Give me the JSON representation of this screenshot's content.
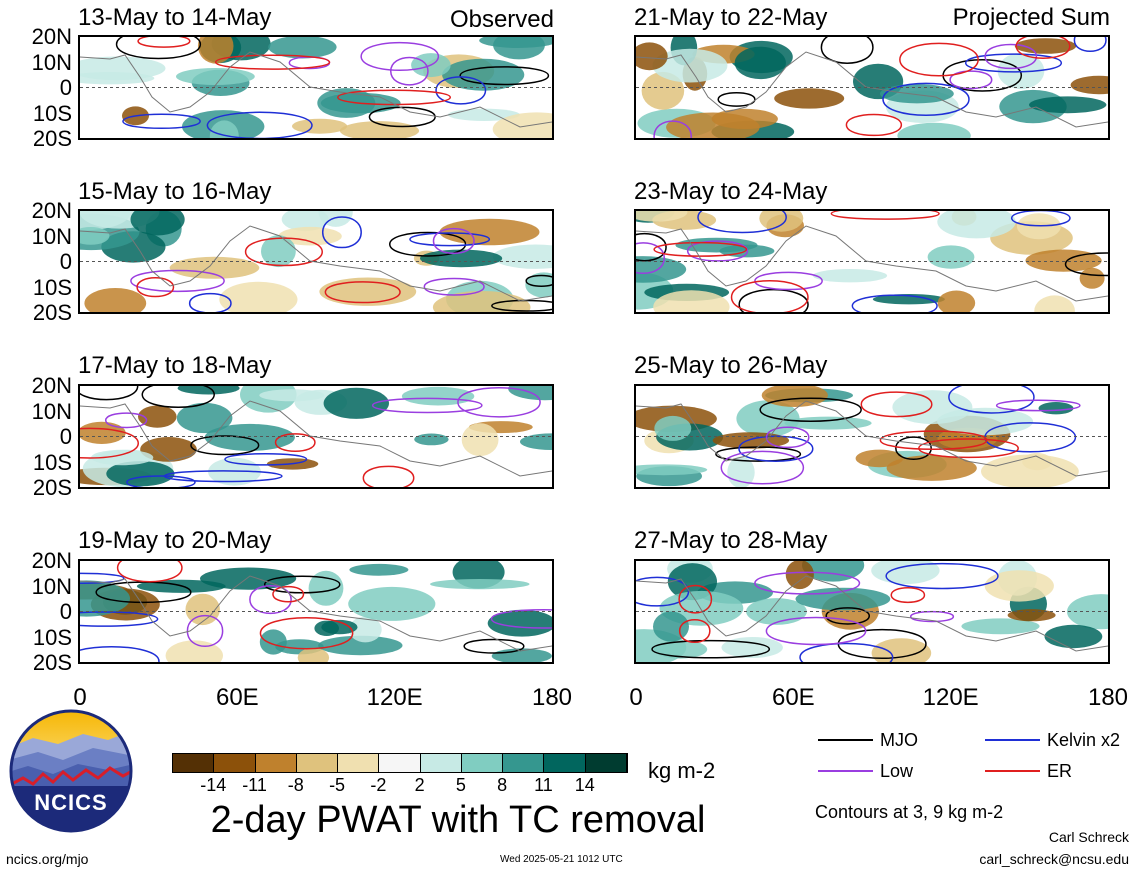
{
  "chart_data": {
    "type": "heatmap",
    "title": "2-day PWAT with TC removal",
    "units": "kg m-2",
    "contours_note": "Contours at 3, 9 kg m-2",
    "x_ticks": [
      "0",
      "60E",
      "120E",
      "180"
    ],
    "y_ticks": [
      "20N",
      "10N",
      "0",
      "10S",
      "20S"
    ],
    "xlim": [
      0,
      180
    ],
    "ylim": [
      -20,
      20
    ],
    "colorbar": {
      "labels": [
        "-14",
        "-11",
        "-8",
        "-5",
        "-2",
        "2",
        "5",
        "8",
        "11",
        "14"
      ],
      "colors": [
        "#543005",
        "#8c510a",
        "#bf812d",
        "#dfc27d",
        "#f0e0b0",
        "#f6f6f6",
        "#c7eae5",
        "#80cdc1",
        "#35978f",
        "#01665e",
        "#003c30"
      ]
    },
    "legend": [
      {
        "name": "MJO",
        "color": "#000000"
      },
      {
        "name": "Kelvin x2",
        "color": "#1f2fd6"
      },
      {
        "name": "Low",
        "color": "#9a3ee0"
      },
      {
        "name": "ER",
        "color": "#e01f1f"
      }
    ],
    "columns": [
      {
        "label": "Observed",
        "panels": [
          "13-May to 14-May",
          "15-May to 16-May",
          "17-May to 18-May",
          "19-May to 20-May"
        ]
      },
      {
        "label": "Projected Sum",
        "panels": [
          "21-May to 22-May",
          "23-May to 24-May",
          "25-May to 26-May",
          "27-May to 28-May"
        ]
      }
    ]
  },
  "footer": {
    "logo_text": "NCICS",
    "site": "ncics.org/mjo",
    "timestamp": "Wed 2025-05-21 1012 UTC",
    "author": "Carl Schreck",
    "email": "carl_schreck@ncsu.edu"
  }
}
